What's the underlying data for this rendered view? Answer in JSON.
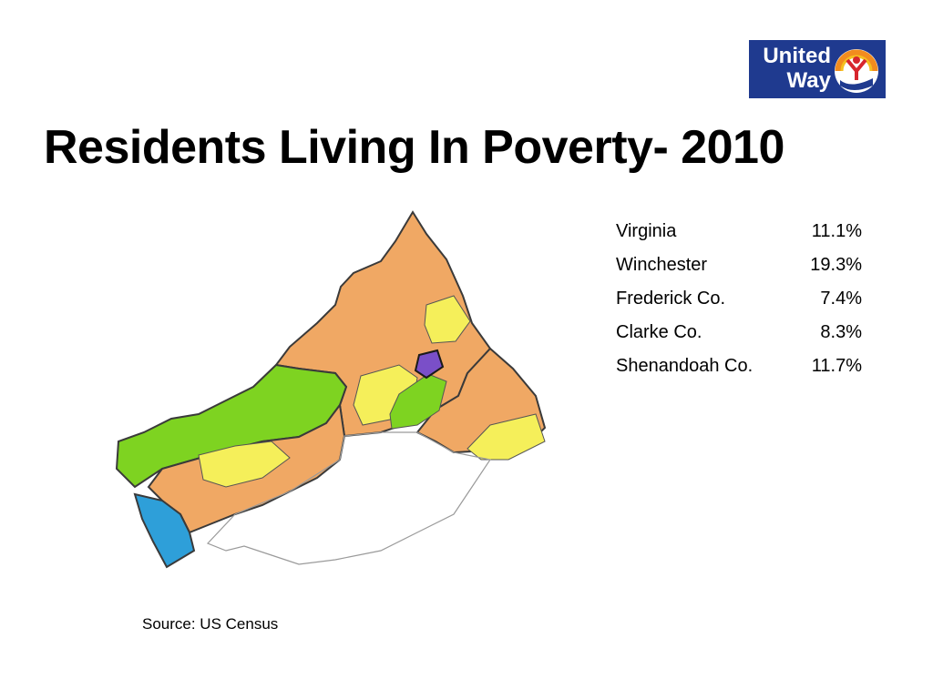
{
  "slide": {
    "title": "Residents Living In Poverty- 2010",
    "source": "Source:  US Census"
  },
  "logo": {
    "line1": "United",
    "line2": "Way",
    "background": "#1f3a8f"
  },
  "poverty_rates": [
    {
      "area": "Virginia",
      "rate": "11.1%"
    },
    {
      "area": "Winchester",
      "rate": "19.3%"
    },
    {
      "area": "Frederick Co.",
      "rate": "7.4%"
    },
    {
      "area": "Clarke Co.",
      "rate": "8.3%"
    },
    {
      "area": "Shenandoah Co.",
      "rate": "11.7%"
    }
  ],
  "map_colors": {
    "orange": "#f0a864",
    "green": "#7ed321",
    "yellow": "#f5ef5a",
    "blue": "#2e9fd9",
    "purple": "#7a4fc8"
  }
}
